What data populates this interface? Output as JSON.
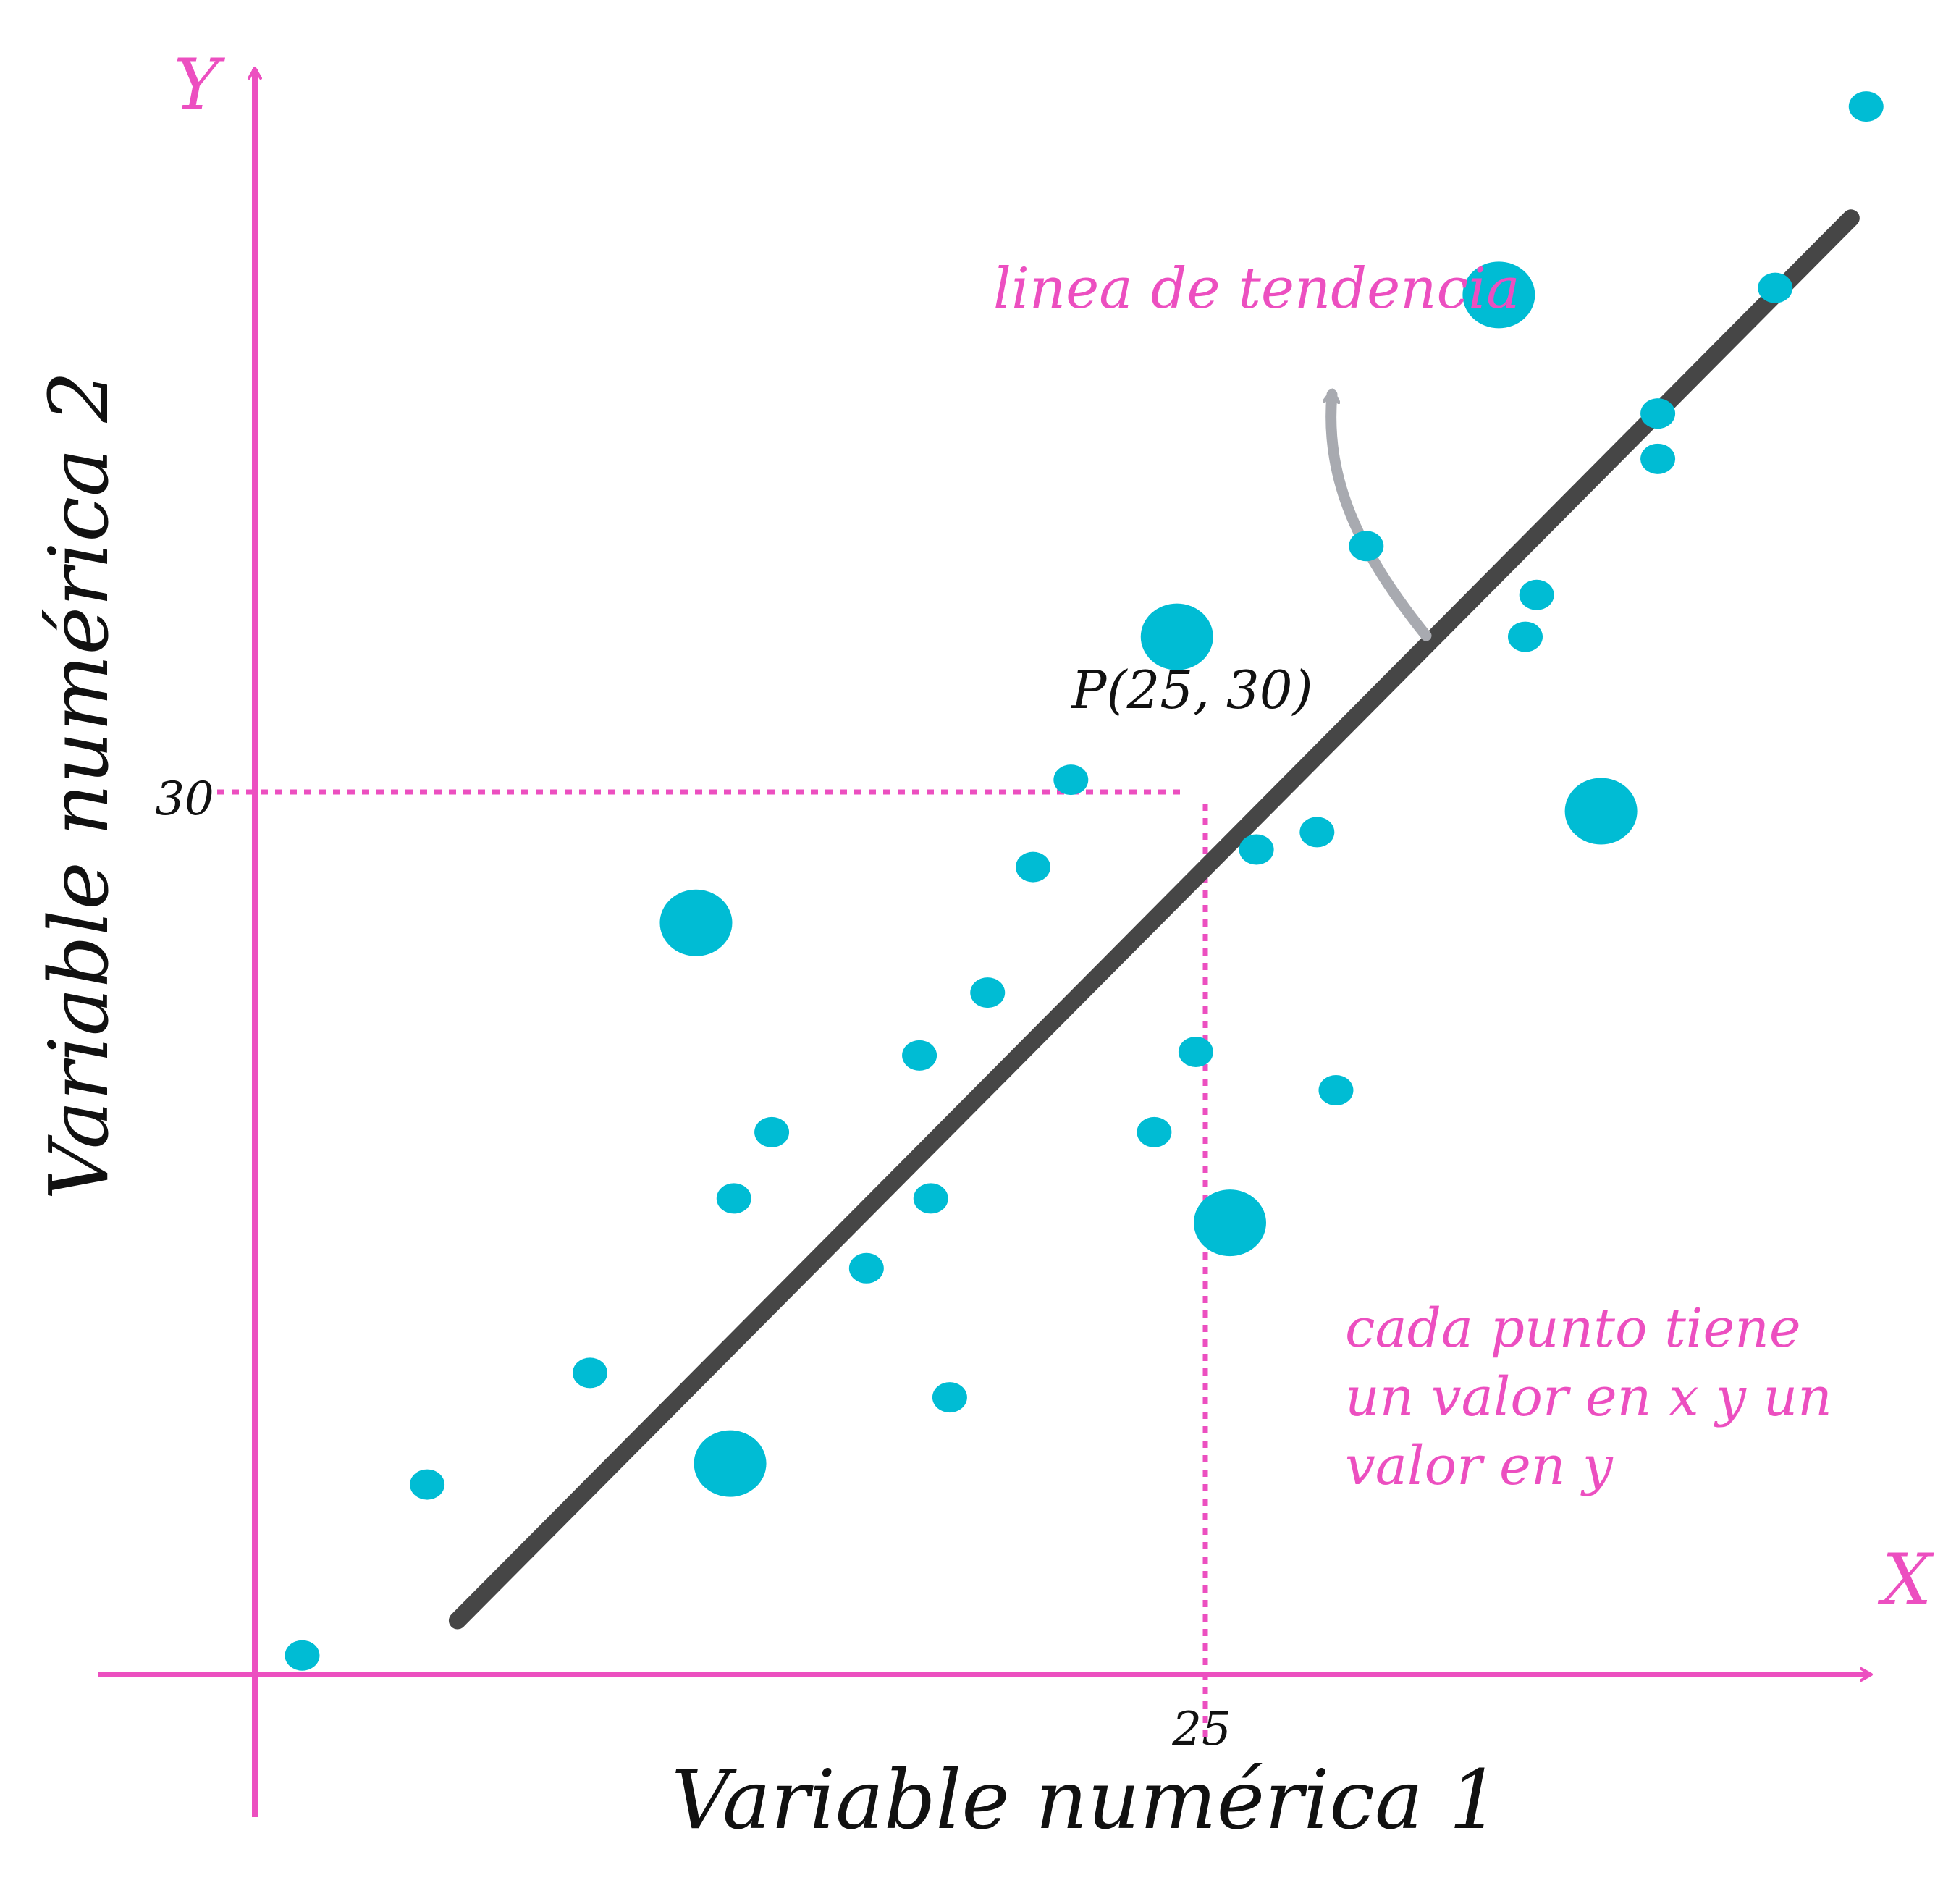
{
  "chart_data": {
    "type": "scatter",
    "xlabel": "Variable numérica 1",
    "ylabel": "Variable numérica 2",
    "x_axis_letter": "X",
    "y_axis_letter": "Y",
    "x_ticks": [
      "25"
    ],
    "y_ticks": [
      "30"
    ],
    "xlim": [
      -3.4,
      43.4
    ],
    "ylim": [
      -2.9,
      46.8
    ],
    "grid": false,
    "highlight_point": {
      "label": "P(25, 30)",
      "x": 25,
      "y": 30
    },
    "points": [
      {
        "x": 2.0,
        "y": 0.8,
        "size": "small"
      },
      {
        "x": 5.3,
        "y": 5.7,
        "size": "small"
      },
      {
        "x": 9.6,
        "y": 8.9,
        "size": "small"
      },
      {
        "x": 13.3,
        "y": 6.3,
        "size": "large"
      },
      {
        "x": 12.4,
        "y": 21.8,
        "size": "large"
      },
      {
        "x": 13.4,
        "y": 13.9,
        "size": "small"
      },
      {
        "x": 14.4,
        "y": 15.8,
        "size": "small"
      },
      {
        "x": 16.9,
        "y": 11.9,
        "size": "small"
      },
      {
        "x": 18.6,
        "y": 13.9,
        "size": "small"
      },
      {
        "x": 19.1,
        "y": 8.2,
        "size": "small"
      },
      {
        "x": 18.3,
        "y": 18.0,
        "size": "small"
      },
      {
        "x": 20.1,
        "y": 19.8,
        "size": "small"
      },
      {
        "x": 21.3,
        "y": 23.4,
        "size": "small"
      },
      {
        "x": 22.3,
        "y": 25.9,
        "size": "small"
      },
      {
        "x": 24.5,
        "y": 15.8,
        "size": "small"
      },
      {
        "x": 25.1,
        "y": 30.0,
        "size": "large"
      },
      {
        "x": 25.6,
        "y": 18.1,
        "size": "small"
      },
      {
        "x": 26.5,
        "y": 13.2,
        "size": "large"
      },
      {
        "x": 27.2,
        "y": 23.9,
        "size": "small"
      },
      {
        "x": 28.8,
        "y": 24.4,
        "size": "small"
      },
      {
        "x": 29.3,
        "y": 17.0,
        "size": "small"
      },
      {
        "x": 30.1,
        "y": 32.6,
        "size": "small"
      },
      {
        "x": 33.6,
        "y": 39.8,
        "size": "large"
      },
      {
        "x": 34.3,
        "y": 30.0,
        "size": "small"
      },
      {
        "x": 34.6,
        "y": 31.2,
        "size": "small"
      },
      {
        "x": 36.3,
        "y": 25.0,
        "size": "large"
      },
      {
        "x": 37.8,
        "y": 35.1,
        "size": "small"
      },
      {
        "x": 37.8,
        "y": 36.4,
        "size": "small"
      },
      {
        "x": 40.9,
        "y": 40.0,
        "size": "small"
      },
      {
        "x": 43.3,
        "y": 45.2,
        "size": "small"
      }
    ],
    "trend_line": {
      "x": [
        6.1,
        42.9
      ],
      "y": [
        1.8,
        42.0
      ]
    },
    "annotations": {
      "trend_label": "linea de tendencia",
      "note_lines": [
        "cada punto tiene",
        "un valor en x y un",
        "valor en y"
      ]
    },
    "colors": {
      "axes": "#ec4fc0",
      "points": "#00bcd4",
      "trend_line": "#464646",
      "arrow": "#a8aab0",
      "text_dark": "#111111"
    }
  }
}
